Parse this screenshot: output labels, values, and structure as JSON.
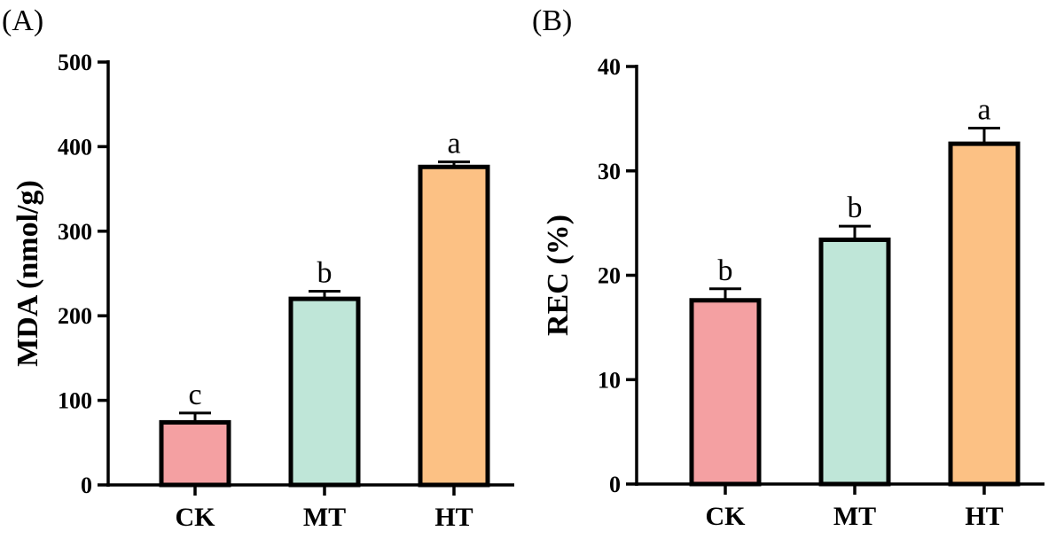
{
  "chart_data": [
    {
      "panel_label": "(A)",
      "type": "bar",
      "ylabel": "MDA (nmol/g)",
      "ylim": [
        0,
        500
      ],
      "yticks": [
        0,
        100,
        200,
        300,
        400,
        500
      ],
      "categories": [
        "CK",
        "MT",
        "HT"
      ],
      "values": [
        74,
        220,
        376
      ],
      "errors": [
        11,
        9,
        6
      ],
      "significance": [
        "c",
        "b",
        "a"
      ],
      "colors": [
        "#f4a0a2",
        "#bfe6d8",
        "#fcc184"
      ]
    },
    {
      "panel_label": "(B)",
      "type": "bar",
      "ylabel": "REC (%)",
      "ylim": [
        0,
        40
      ],
      "yticks": [
        0,
        10,
        20,
        30,
        40
      ],
      "categories": [
        "CK",
        "MT",
        "HT"
      ],
      "values": [
        17.6,
        23.4,
        32.6
      ],
      "errors": [
        1.1,
        1.3,
        1.5
      ],
      "significance": [
        "b",
        "b",
        "a"
      ],
      "colors": [
        "#f4a0a2",
        "#bfe6d8",
        "#fcc184"
      ]
    }
  ]
}
